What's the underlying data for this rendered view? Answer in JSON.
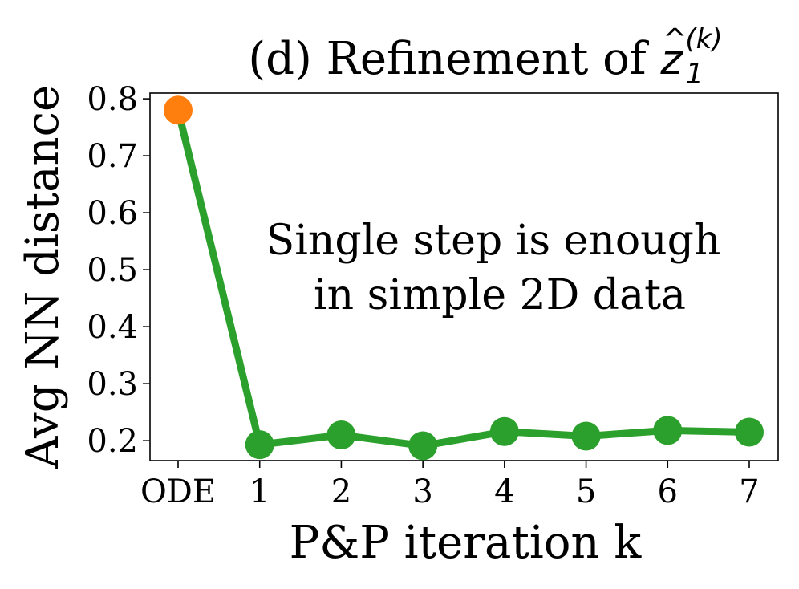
{
  "chart_data": {
    "type": "line",
    "title": {
      "prefix": "(d) Refinement of ",
      "math_base": "z",
      "math_hat": "^",
      "math_sub": "1",
      "math_sup": "(k)"
    },
    "xlabel": "P&P iteration k",
    "ylabel": "Avg NN distance",
    "categories": [
      "ODE",
      "1",
      "2",
      "3",
      "4",
      "5",
      "6",
      "7"
    ],
    "y_ticks": [
      "0.2",
      "0.3",
      "0.4",
      "0.5",
      "0.6",
      "0.7",
      "0.8"
    ],
    "ylim": [
      0.165,
      0.81
    ],
    "series": [
      {
        "values": [
          0.78,
          0.193,
          0.21,
          0.191,
          0.216,
          0.208,
          0.218,
          0.215
        ],
        "line_color": "#2ca02c",
        "first_point_color": "#ff7f0e"
      }
    ],
    "annotation": [
      "Single step is enough",
      "in simple 2D data"
    ],
    "grid": false,
    "legend": "none"
  }
}
